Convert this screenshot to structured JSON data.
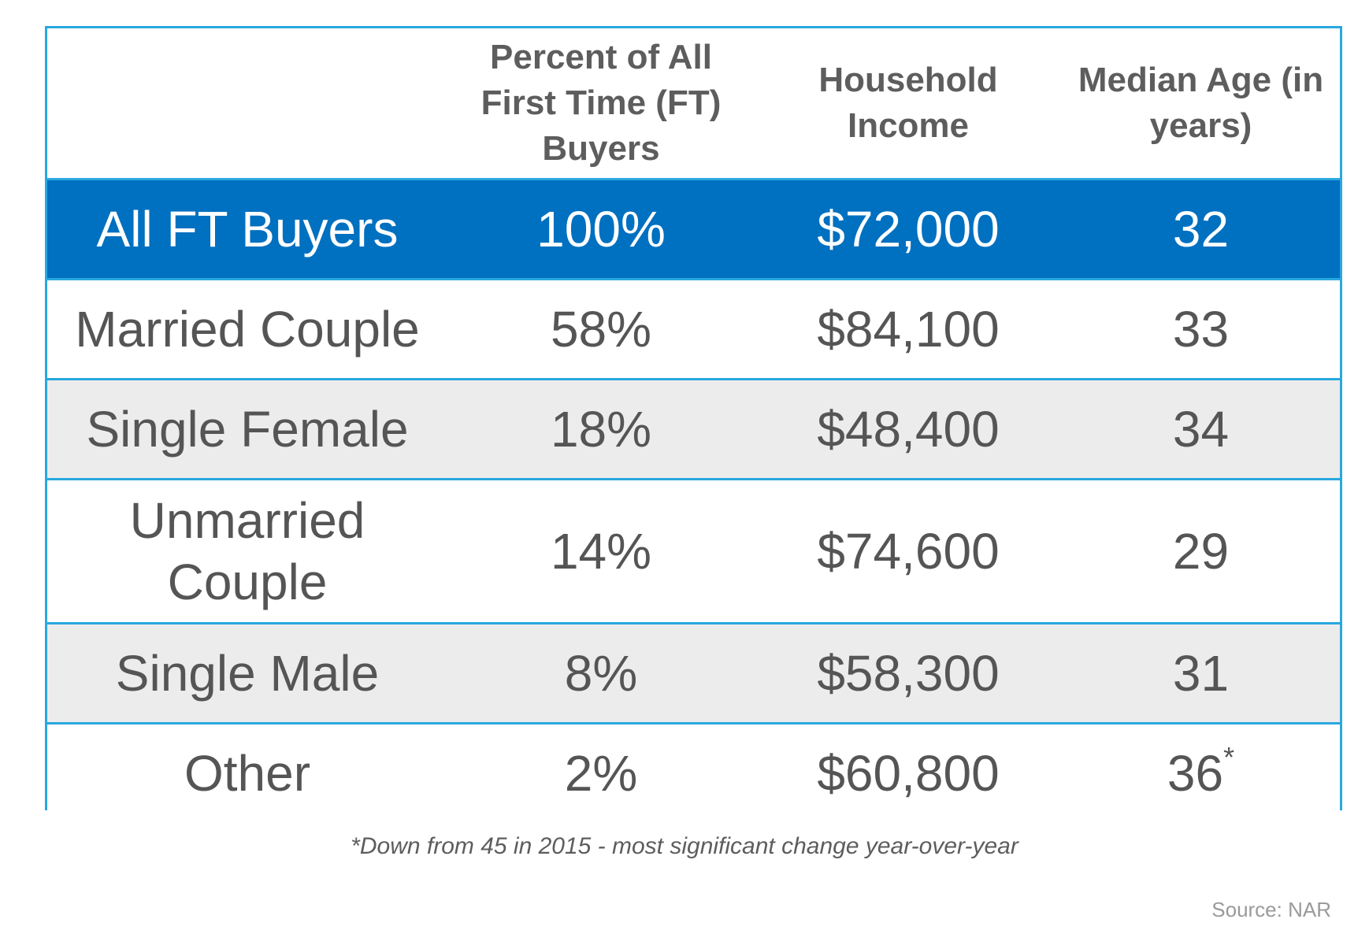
{
  "chart_data": {
    "type": "table",
    "columns": [
      "",
      "Percent of All First Time (FT) Buyers",
      "Household Income",
      "Median Age (in years)"
    ],
    "rows": [
      {
        "label": "All FT Buyers",
        "percent": "100%",
        "income": "$72,000",
        "age": "32",
        "age_mark": "",
        "style": "highlight"
      },
      {
        "label": "Married Couple",
        "percent": "58%",
        "income": "$84,100",
        "age": "33",
        "age_mark": "",
        "style": "plain"
      },
      {
        "label": "Single Female",
        "percent": "18%",
        "income": "$48,400",
        "age": "34",
        "age_mark": "",
        "style": "shade"
      },
      {
        "label": "Unmarried Couple",
        "percent": "14%",
        "income": "$74,600",
        "age": "29",
        "age_mark": "",
        "style": "plain"
      },
      {
        "label": "Single Male",
        "percent": "8%",
        "income": "$58,300",
        "age": "31",
        "age_mark": "",
        "style": "shade"
      },
      {
        "label": "Other",
        "percent": "2%",
        "income": "$60,800",
        "age": "36",
        "age_mark": "*",
        "style": "plain"
      }
    ],
    "footnote": "*Down from 45 in 2015 - most significant change year-over-year",
    "source": "Source: NAR",
    "colors": {
      "border": "#29a8df",
      "highlight_fill": "#0070c0",
      "shade_fill": "#ececec",
      "text": "#555555"
    }
  }
}
